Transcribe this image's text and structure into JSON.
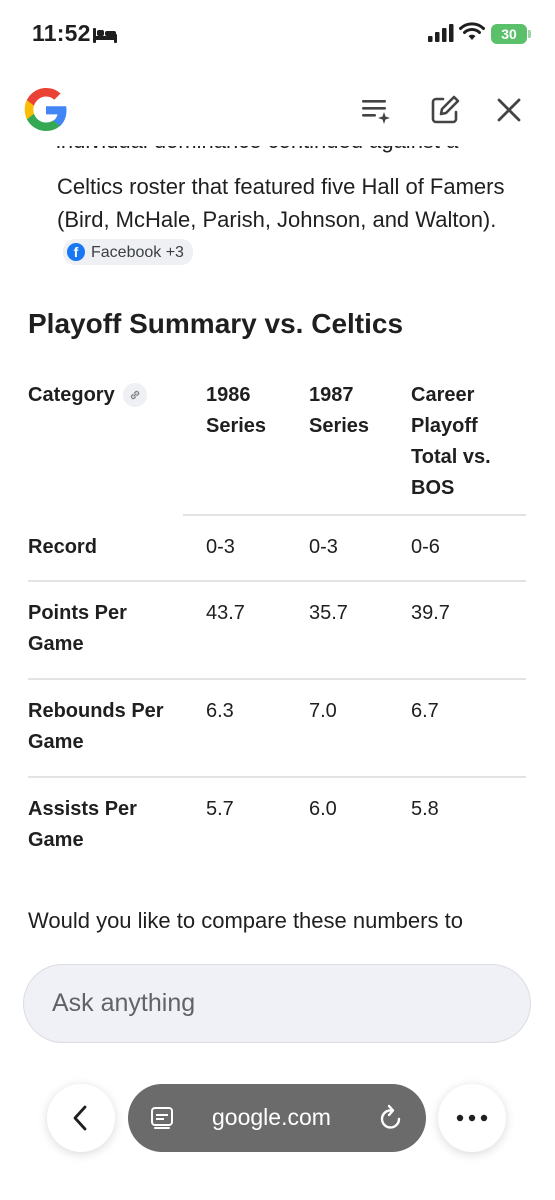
{
  "status_bar": {
    "time": "11:52",
    "battery": "30"
  },
  "header": {
    "logo_icon": "google-g-logo",
    "icons": [
      "list-sparkle-icon",
      "edit-icon",
      "close-icon"
    ]
  },
  "content": {
    "partial_line": "individual dominance continued against a",
    "paragraph": "Celtics roster that featured five Hall of Famers (Bird, McHale, Parish, Johnson, and Walton).",
    "source_chip": {
      "label": "Facebook +3",
      "icon": "facebook-icon"
    },
    "section_title": "Playoff Summary vs. Celtics",
    "table": {
      "headers": [
        "Category",
        "1986 Series",
        "1987 Series",
        "Career Playoff Total vs. BOS"
      ],
      "rows": [
        [
          "Record",
          "0-3",
          "0-3",
          "0-6"
        ],
        [
          "Points Per Game",
          "43.7",
          "35.7",
          "39.7"
        ],
        [
          "Rebounds Per Game",
          "6.3",
          "7.0",
          "6.7"
        ],
        [
          "Assists Per Game",
          "5.7",
          "6.0",
          "5.8"
        ]
      ]
    },
    "followup": "Would you like to compare these numbers to"
  },
  "composer": {
    "placeholder": "Ask anything"
  },
  "browser_bar": {
    "url": "google.com",
    "icons": [
      "back-icon",
      "tabs-icon",
      "reload-icon",
      "more-icon"
    ]
  },
  "colors": {
    "battery": "#5ac06a",
    "url_pill": "#6b6b6b",
    "chip_bg": "#eef0f4",
    "facebook": "#1877f2"
  }
}
